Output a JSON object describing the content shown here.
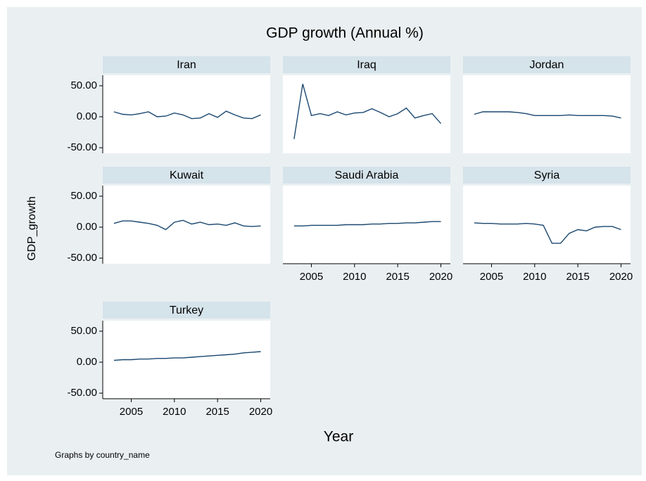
{
  "title": "GDP growth (Annual %)",
  "x_label": "Year",
  "y_label": "GDP_growth",
  "note": "Graphs by country_name",
  "axes": {
    "xlim": [
      2001.7,
      2021.1
    ],
    "xticks": [
      2005,
      2010,
      2015,
      2020
    ],
    "ylim": [
      -59,
      67
    ],
    "yticks": [
      {
        "value": 50,
        "label": "50.00"
      },
      {
        "value": 0,
        "label": "0.00"
      },
      {
        "value": -50,
        "label": "-50.00"
      }
    ]
  },
  "color": "#1a476f",
  "chart_data": [
    {
      "type": "line",
      "title": "Iran",
      "x": [
        2003,
        2004,
        2005,
        2006,
        2007,
        2008,
        2009,
        2010,
        2011,
        2012,
        2013,
        2014,
        2015,
        2016,
        2017,
        2018,
        2019,
        2020
      ],
      "values": [
        8,
        4,
        3,
        5,
        8,
        0,
        1,
        6,
        3,
        -3,
        -2,
        5,
        -1,
        9,
        3,
        -2,
        -3,
        3
      ]
    },
    {
      "type": "line",
      "title": "Iraq",
      "x": [
        2003,
        2004,
        2005,
        2006,
        2007,
        2008,
        2009,
        2010,
        2011,
        2012,
        2013,
        2014,
        2015,
        2016,
        2017,
        2018,
        2019,
        2020
      ],
      "values": [
        -36,
        53,
        2,
        5,
        2,
        8,
        3,
        6,
        7,
        13,
        7,
        0,
        5,
        14,
        -2,
        2,
        5,
        -11
      ]
    },
    {
      "type": "line",
      "title": "Jordan",
      "x": [
        2003,
        2004,
        2005,
        2006,
        2007,
        2008,
        2009,
        2010,
        2011,
        2012,
        2013,
        2014,
        2015,
        2016,
        2017,
        2018,
        2019,
        2020
      ],
      "values": [
        4,
        8,
        8,
        8,
        8,
        7,
        5,
        2,
        2,
        2,
        2,
        3,
        2,
        2,
        2,
        2,
        1,
        -2
      ]
    },
    {
      "type": "line",
      "title": "Kuwait",
      "x": [
        2003,
        2004,
        2005,
        2006,
        2007,
        2008,
        2009,
        2010,
        2011,
        2012,
        2013,
        2014,
        2015,
        2016,
        2017,
        2018,
        2019,
        2020
      ],
      "values": [
        6,
        10,
        10,
        8,
        6,
        3,
        -4,
        8,
        11,
        5,
        8,
        4,
        5,
        3,
        7,
        2,
        1,
        2
      ]
    },
    {
      "type": "line",
      "title": "Saudi Arabia",
      "x": [
        2003,
        2004,
        2005,
        2006,
        2007,
        2008,
        2009,
        2010,
        2011,
        2012,
        2013,
        2014,
        2015,
        2016,
        2017,
        2018,
        2019,
        2020
      ],
      "values": [
        2,
        2,
        3,
        3,
        3,
        3,
        4,
        4,
        4,
        5,
        5,
        6,
        6,
        7,
        7,
        8,
        9,
        9
      ]
    },
    {
      "type": "line",
      "title": "Syria",
      "x": [
        2003,
        2004,
        2005,
        2006,
        2007,
        2008,
        2009,
        2010,
        2011,
        2012,
        2013,
        2014,
        2015,
        2016,
        2017,
        2018,
        2019,
        2020
      ],
      "values": [
        7,
        6,
        6,
        5,
        5,
        5,
        6,
        5,
        3,
        -26,
        -26,
        -10,
        -4,
        -6,
        0,
        1,
        1,
        -4
      ]
    },
    {
      "type": "line",
      "title": "Turkey",
      "x": [
        2003,
        2004,
        2005,
        2006,
        2007,
        2008,
        2009,
        2010,
        2011,
        2012,
        2013,
        2014,
        2015,
        2016,
        2017,
        2018,
        2019,
        2020
      ],
      "values": [
        3,
        4,
        4,
        5,
        5,
        6,
        6,
        7,
        7,
        8,
        9,
        10,
        11,
        12,
        13,
        15,
        16,
        17
      ]
    }
  ]
}
